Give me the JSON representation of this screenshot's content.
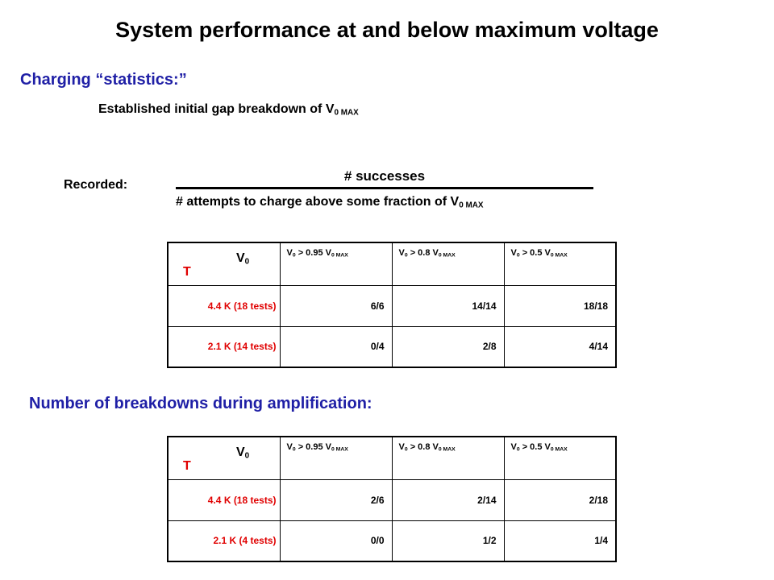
{
  "colors": {
    "heading": "#1f1fa6",
    "row_label": "#e00000",
    "text": "#000000"
  },
  "slide": {
    "title": "System performance at and below maximum voltage",
    "charging_heading": "Charging “statistics:”",
    "established_text": "Established initial gap breakdown of V",
    "established_sub": "0 MAX",
    "recorded_label": "Recorded:",
    "fraction_numerator": "# successes",
    "fraction_denominator": "# attempts to charge above some fraction of V",
    "fraction_denominator_sub": "0 MAX",
    "breakdowns_heading": "Number of breakdowns during amplification:"
  },
  "table_header": {
    "corner_v": "V",
    "corner_v_sub": "0",
    "corner_t": "T",
    "columns": [
      {
        "v": "V",
        "v_sub": "0",
        "op": " > 0.95 V",
        "op_sub": "0 MAX"
      },
      {
        "v": "V",
        "v_sub": "0",
        "op": " > 0.8 V",
        "op_sub": "0 MAX"
      },
      {
        "v": "V",
        "v_sub": "0",
        "op": " > 0.5 V",
        "op_sub": "0 MAX"
      }
    ]
  },
  "charging_table": {
    "rows": [
      {
        "label": "4.4 K (18 tests)",
        "values": [
          "6/6",
          "14/14",
          "18/18"
        ]
      },
      {
        "label": "2.1 K (14 tests)",
        "values": [
          "0/4",
          "2/8",
          "4/14"
        ]
      }
    ]
  },
  "breakdown_table": {
    "rows": [
      {
        "label": "4.4 K (18 tests)",
        "values": [
          "2/6",
          "2/14",
          "2/18"
        ]
      },
      {
        "label": "2.1 K (4 tests)",
        "values": [
          "0/0",
          "1/2",
          "1/4"
        ]
      }
    ]
  }
}
